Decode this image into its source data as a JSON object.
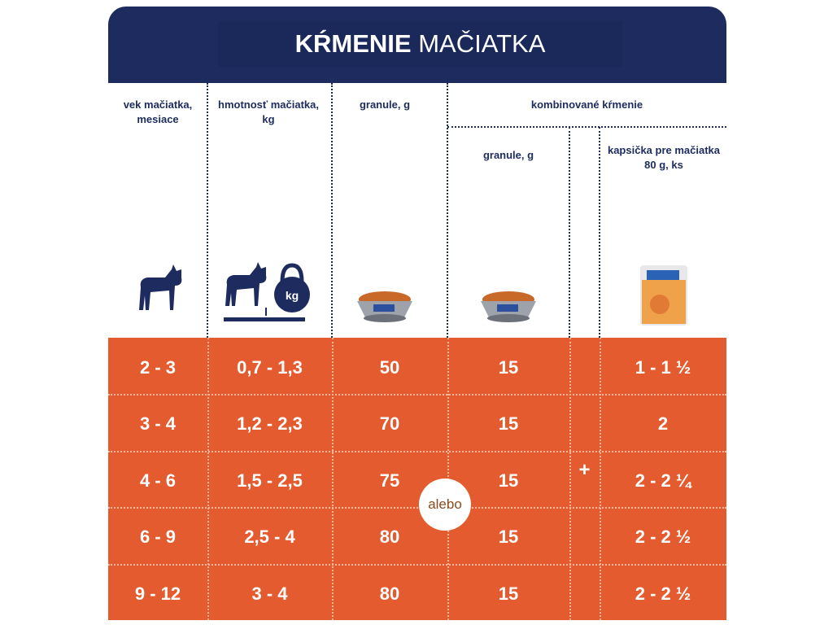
{
  "header": {
    "title_bold": "KŔMENIE",
    "title_rest": "MAČIATKA"
  },
  "table": {
    "columns": [
      "vek mačiatka, mesiace",
      "hmotnosť mačiatka, kg",
      "granule, g"
    ],
    "combined": {
      "title": "kombinované kŕmenie",
      "columns": [
        "granule, g",
        "kapsička pre mačiatka 80 g, ks"
      ]
    },
    "rows": [
      [
        "2 - 3",
        "0,7 - 1,3",
        "50",
        "15",
        "1 - 1 ½"
      ],
      [
        "3 - 4",
        "1,2 - 2,3",
        "70",
        "15",
        "2"
      ],
      [
        "4 - 6",
        "1,5 - 2,5",
        "75",
        "15",
        "2 - 2 ¼"
      ],
      [
        "6 - 9",
        "2,5 - 4",
        "80",
        "15",
        "2 - 2 ½"
      ],
      [
        "9 - 12",
        "3 - 4",
        "80",
        "15",
        "2 - 2 ½"
      ]
    ],
    "or": "alebo",
    "plus": "+",
    "kg_icon": "kg"
  }
}
